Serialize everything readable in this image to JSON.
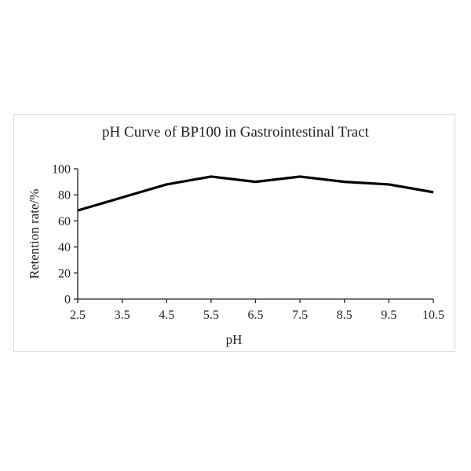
{
  "chart_data": {
    "type": "line",
    "title": "pH Curve of BP100 in Gastrointestinal Tract",
    "xlabel": "pH",
    "ylabel": "Retention rate/%",
    "categories": [
      "2.5",
      "3.5",
      "4.5",
      "5.5",
      "6.5",
      "7.5",
      "8.5",
      "9.5",
      "10.5"
    ],
    "series": [
      {
        "name": "Retention rate",
        "values": [
          68,
          78,
          88,
          94,
          90,
          94,
          90,
          88,
          82
        ],
        "color": "#000000"
      }
    ],
    "yticks": [
      0,
      20,
      40,
      60,
      80,
      100
    ],
    "ylim": [
      0,
      100
    ],
    "grid": false,
    "legend": null
  }
}
